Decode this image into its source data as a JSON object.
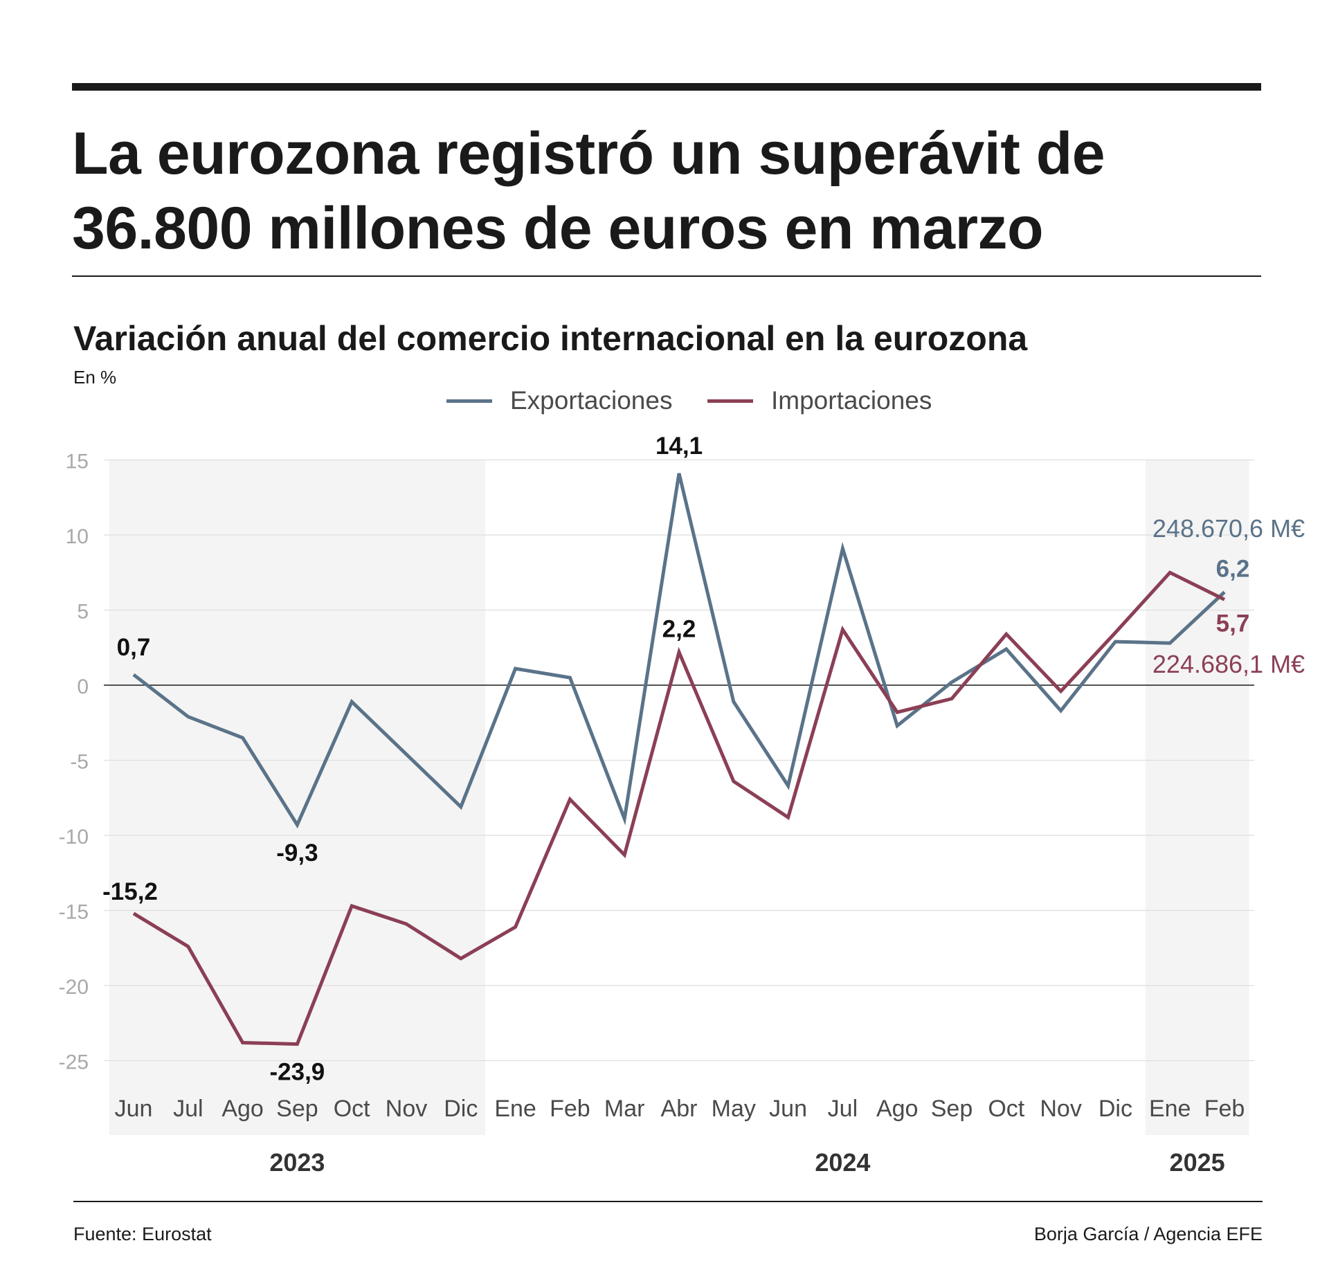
{
  "headline": {
    "line1": "La eurozona registró un superávit de",
    "line2": "36.800 millones de euros en marzo"
  },
  "subtitle": "Variación anual del comercio internacional en la eurozona",
  "unit_label": "En %",
  "legend": {
    "exports": "Exportaciones",
    "imports": "Importaciones"
  },
  "colors": {
    "exports": "#5a7389",
    "imports": "#8b3f55",
    "shade": "#f4f4f4",
    "grid": "#dedede",
    "tick": "#a8a8a8"
  },
  "chart_data": {
    "type": "line",
    "title": "Variación anual del comercio internacional en la eurozona",
    "ylabel": "En %",
    "ylim": [
      -28,
      15
    ],
    "yticks": [
      15,
      10,
      5,
      0,
      -5,
      -10,
      -15,
      -20,
      -25
    ],
    "categories": [
      "Jun",
      "Jul",
      "Ago",
      "Sep",
      "Oct",
      "Nov",
      "Dic",
      "Ene",
      "Feb",
      "Mar",
      "Abr",
      "May",
      "Jun",
      "Jul",
      "Ago",
      "Sep",
      "Oct",
      "Nov",
      "Dic",
      "Ene",
      "Feb"
    ],
    "year_groups": [
      {
        "label": "2023",
        "start": 0,
        "end": 6,
        "shaded": true
      },
      {
        "label": "2024",
        "start": 7,
        "end": 18,
        "shaded": false
      },
      {
        "label": "2025",
        "start": 19,
        "end": 20,
        "shaded": true
      }
    ],
    "series": [
      {
        "name": "Exportaciones",
        "key": "exports",
        "values": [
          0.7,
          -2.1,
          -3.5,
          -9.3,
          -1.1,
          -4.6,
          -8.1,
          1.1,
          0.5,
          -8.9,
          14.1,
          -1.1,
          -6.7,
          9.1,
          -2.7,
          0.2,
          2.4,
          -1.7,
          2.9,
          2.8,
          6.2
        ]
      },
      {
        "name": "Importaciones",
        "key": "imports",
        "values": [
          -15.2,
          -17.4,
          -23.8,
          -23.9,
          -14.7,
          -15.9,
          -18.2,
          -16.1,
          -7.6,
          -11.3,
          2.2,
          -6.4,
          -8.8,
          3.7,
          -1.8,
          -0.9,
          3.4,
          -0.4,
          3.5,
          7.5,
          5.7
        ]
      }
    ],
    "point_labels": [
      {
        "series": "exports",
        "index": 0,
        "text": "0,7"
      },
      {
        "series": "exports",
        "index": 3,
        "text": "-9,3"
      },
      {
        "series": "exports",
        "index": 10,
        "text": "14,1"
      },
      {
        "series": "exports",
        "index": 20,
        "text": "6,2"
      },
      {
        "series": "imports",
        "index": 0,
        "text": "-15,2"
      },
      {
        "series": "imports",
        "index": 3,
        "text": "-23,9"
      },
      {
        "series": "imports",
        "index": 10,
        "text": "2,2"
      },
      {
        "series": "imports",
        "index": 20,
        "text": "5,7"
      }
    ],
    "annotations": {
      "exports_total": "248.670,6 M€",
      "imports_total": "224.686,1 M€"
    }
  },
  "footer": {
    "source": "Fuente: Eurostat",
    "credit": "Borja García / Agencia EFE"
  }
}
